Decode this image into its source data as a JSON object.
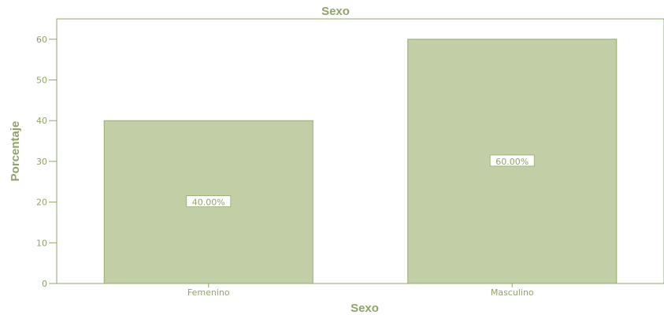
{
  "chart_data": {
    "type": "bar",
    "title": "Sexo",
    "xlabel": "Sexo",
    "ylabel": "Porcentaje",
    "categories": [
      "Femenino",
      "Masculino"
    ],
    "values": [
      40,
      60
    ],
    "data_labels": [
      "40.00%",
      "60.00%"
    ],
    "ylim": [
      0,
      65
    ],
    "yticks": [
      0,
      10,
      20,
      30,
      40,
      50,
      60
    ],
    "grid": false,
    "legend": "none",
    "colors": {
      "bar_fill": "#c2cea6",
      "bar_stroke": "#96ab6e",
      "axis": "#8fa36a",
      "text": "#8fa36a"
    }
  }
}
